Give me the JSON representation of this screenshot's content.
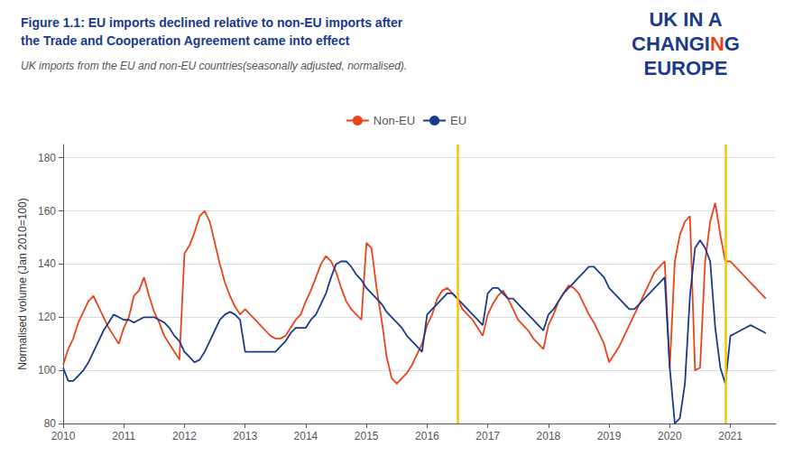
{
  "chart_data": {
    "type": "line",
    "title": "Figure 1.1: EU imports declined relative to non-EU imports after\nthe Trade and Cooperation Agreement came into effect",
    "title_color": "#1A3A8C",
    "subtitle": "UK imports from the EU and non-EU countries(seasonally adjusted, normalised).",
    "subtitle_color": "#555555",
    "ylabel": "Normalised volume (Jan 2010=100)",
    "x": [
      2010,
      2010.0833333333333,
      2010.1666666666667,
      2010.25,
      2010.3333333333333,
      2010.4166666666667,
      2010.5,
      2010.5833333333333,
      2010.6666666666667,
      2010.75,
      2010.8333333333333,
      2010.9166666666667,
      2011,
      2011.0833333333333,
      2011.1666666666667,
      2011.25,
      2011.3333333333333,
      2011.4166666666667,
      2011.5,
      2011.5833333333333,
      2011.6666666666667,
      2011.75,
      2011.8333333333333,
      2011.9166666666667,
      2012,
      2012.0833333333333,
      2012.1666666666667,
      2012.25,
      2012.3333333333333,
      2012.4166666666667,
      2012.5,
      2012.5833333333333,
      2012.6666666666667,
      2012.75,
      2012.8333333333333,
      2012.9166666666667,
      2013,
      2013.0833333333333,
      2013.1666666666667,
      2013.25,
      2013.3333333333333,
      2013.4166666666667,
      2013.5,
      2013.5833333333333,
      2013.6666666666667,
      2013.75,
      2013.8333333333333,
      2013.9166666666667,
      2014,
      2014.0833333333333,
      2014.1666666666667,
      2014.25,
      2014.3333333333333,
      2014.4166666666667,
      2014.5,
      2014.5833333333333,
      2014.6666666666667,
      2014.75,
      2014.8333333333333,
      2014.9166666666667,
      2015,
      2015.0833333333333,
      2015.1666666666667,
      2015.25,
      2015.3333333333333,
      2015.4166666666667,
      2015.5,
      2015.5833333333333,
      2015.6666666666667,
      2015.75,
      2015.8333333333333,
      2015.9166666666667,
      2016,
      2016.0833333333333,
      2016.1666666666667,
      2016.25,
      2016.3333333333333,
      2016.4166666666667,
      2016.5,
      2016.5833333333333,
      2016.6666666666667,
      2016.75,
      2016.8333333333333,
      2016.9166666666667,
      2017,
      2017.0833333333333,
      2017.1666666666667,
      2017.25,
      2017.3333333333333,
      2017.4166666666667,
      2017.5,
      2017.5833333333333,
      2017.6666666666667,
      2017.75,
      2017.8333333333333,
      2017.9166666666667,
      2018,
      2018.0833333333333,
      2018.1666666666667,
      2018.25,
      2018.3333333333333,
      2018.4166666666667,
      2018.5,
      2018.5833333333333,
      2018.6666666666667,
      2018.75,
      2018.8333333333333,
      2018.9166666666667,
      2019,
      2019.0833333333333,
      2019.1666666666667,
      2019.25,
      2019.3333333333333,
      2019.4166666666667,
      2019.5,
      2019.5833333333333,
      2019.6666666666667,
      2019.75,
      2019.8333333333333,
      2019.9166666666667,
      2020,
      2020.0833333333333,
      2020.1666666666667,
      2020.25,
      2020.3333333333333,
      2020.4166666666667,
      2020.5,
      2020.5833333333333,
      2020.6666666666667,
      2020.75,
      2020.8333333333333,
      2020.9166666666667,
      2021,
      2021.0833333333333,
      2021.1666666666667,
      2021.25,
      2021.3333333333333,
      2021.4166666666667,
      2021.5,
      2021.5833333333333
    ],
    "series": [
      {
        "name": "Non-EU",
        "color": "#E8441A",
        "values": [
          102,
          108,
          112,
          118,
          122,
          126,
          128,
          124,
          120,
          116,
          113,
          110,
          116,
          120,
          128,
          130,
          135,
          128,
          122,
          118,
          113,
          110,
          107,
          104,
          144,
          147,
          152,
          158,
          160,
          156,
          148,
          140,
          133,
          128,
          124,
          121,
          123,
          121,
          119,
          117,
          115,
          113,
          112,
          112,
          113,
          116,
          119,
          121,
          126,
          130,
          135,
          140,
          143,
          141,
          137,
          131,
          126,
          123,
          121,
          119,
          148,
          146,
          131,
          119,
          105,
          97,
          95,
          97,
          99,
          102,
          106,
          110,
          117,
          121,
          127,
          130,
          131,
          129,
          127,
          123,
          121,
          119,
          116,
          113,
          121,
          125,
          128,
          130,
          127,
          123,
          119,
          117,
          115,
          112,
          110,
          108,
          117,
          121,
          126,
          129,
          132,
          131,
          129,
          125,
          121,
          118,
          114,
          110,
          103,
          106,
          109,
          113,
          117,
          121,
          125,
          129,
          133,
          137,
          139,
          141,
          101,
          141,
          151,
          156,
          158,
          100,
          101,
          141,
          156,
          163,
          151,
          141,
          141,
          139,
          137,
          135,
          133,
          131,
          129,
          127
        ]
      },
      {
        "name": "EU",
        "color": "#1A3A8C",
        "values": [
          101,
          96,
          96,
          98,
          100,
          103,
          107,
          111,
          115,
          118,
          121,
          120,
          119,
          119,
          118,
          119,
          120,
          120,
          120,
          119,
          118,
          116,
          113,
          111,
          107,
          105,
          103,
          104,
          107,
          111,
          115,
          119,
          121,
          122,
          121,
          119,
          107,
          107,
          107,
          107,
          107,
          107,
          107,
          109,
          111,
          114,
          116,
          116,
          116,
          119,
          121,
          125,
          129,
          135,
          140,
          141,
          141,
          139,
          136,
          134,
          131,
          129,
          127,
          125,
          122,
          120,
          118,
          116,
          113,
          111,
          109,
          107,
          121,
          123,
          125,
          127,
          129,
          129,
          127,
          125,
          123,
          121,
          119,
          117,
          129,
          131,
          131,
          129,
          127,
          127,
          125,
          123,
          121,
          119,
          117,
          115,
          121,
          123,
          126,
          129,
          131,
          133,
          135,
          137,
          139,
          139,
          137,
          135,
          131,
          129,
          127,
          125,
          123,
          123,
          125,
          127,
          129,
          131,
          133,
          135,
          101,
          80,
          82,
          95,
          128,
          146,
          149,
          146,
          141,
          116,
          101,
          95,
          113,
          114,
          115,
          116,
          117,
          116,
          115,
          114
        ]
      }
    ],
    "xlim": [
      2010,
      2021.75
    ],
    "xticks": [
      2010,
      2011,
      2012,
      2013,
      2014,
      2015,
      2016,
      2017,
      2018,
      2019,
      2020,
      2021
    ],
    "ylim": [
      80,
      185
    ],
    "yticks": [
      80,
      100,
      120,
      140,
      160,
      180
    ],
    "grid": true,
    "legend": "top",
    "annotations": [
      {
        "type": "vline",
        "x": 2016.5,
        "color": "#F5C800"
      },
      {
        "type": "vline",
        "x": 2020.92,
        "color": "#F5C800"
      }
    ],
    "logo": [
      [
        {
          "text": "UK IN A",
          "color": "#1A3A8C"
        }
      ],
      [
        {
          "text": "CHANGI",
          "color": "#1A3A8C"
        },
        {
          "text": "N",
          "color": "#E8441A"
        },
        {
          "text": "G",
          "color": "#1A3A8C"
        }
      ],
      [
        {
          "text": "EUROPE",
          "color": "#1A3A8C"
        }
      ]
    ]
  }
}
